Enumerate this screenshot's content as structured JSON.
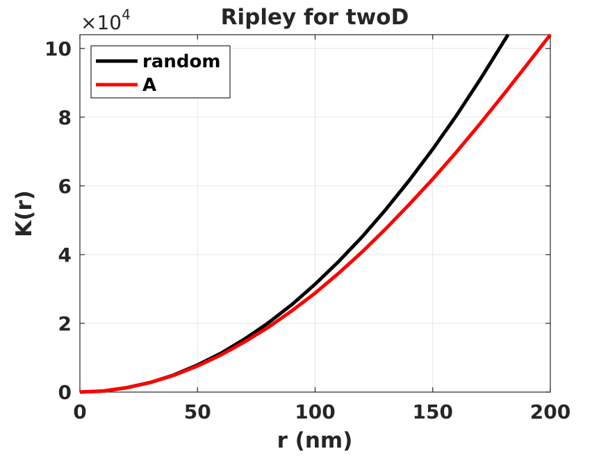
{
  "chart_data": {
    "type": "line",
    "title": "Ripley for twoD",
    "xlabel": "r (nm)",
    "ylabel": "K(r)",
    "xlim": [
      0,
      200
    ],
    "ylim": [
      0,
      10.4
    ],
    "y_scale_prefix": "×10",
    "y_scale_exponent": "4",
    "x_ticks": [
      0,
      50,
      100,
      150,
      200
    ],
    "x_tick_labels": [
      "0",
      "50",
      "100",
      "150",
      "200"
    ],
    "y_ticks": [
      0,
      2,
      4,
      6,
      8,
      10
    ],
    "y_tick_labels": [
      "0",
      "2",
      "4",
      "6",
      "8",
      "10"
    ],
    "grid": true,
    "legend_position": "top-left",
    "series": [
      {
        "name": "random",
        "color": "#000000",
        "x": [
          0,
          10,
          20,
          30,
          40,
          50,
          60,
          70,
          80,
          90,
          100,
          110,
          120,
          130,
          140,
          150,
          160,
          170,
          180,
          182
        ],
        "y": [
          0,
          0.03,
          0.13,
          0.28,
          0.5,
          0.79,
          1.13,
          1.54,
          2.01,
          2.54,
          3.14,
          3.8,
          4.52,
          5.31,
          6.16,
          7.07,
          8.04,
          9.08,
          10.18,
          10.4
        ]
      },
      {
        "name": "A",
        "color": "#ff0000",
        "x": [
          0,
          10,
          20,
          30,
          40,
          50,
          60,
          70,
          80,
          90,
          100,
          110,
          120,
          130,
          140,
          150,
          160,
          170,
          180,
          190,
          200
        ],
        "y": [
          0,
          0.03,
          0.13,
          0.28,
          0.49,
          0.76,
          1.08,
          1.46,
          1.88,
          2.36,
          2.88,
          3.46,
          4.08,
          4.75,
          5.46,
          6.2,
          6.98,
          7.8,
          8.65,
          9.52,
          10.4
        ]
      }
    ]
  }
}
